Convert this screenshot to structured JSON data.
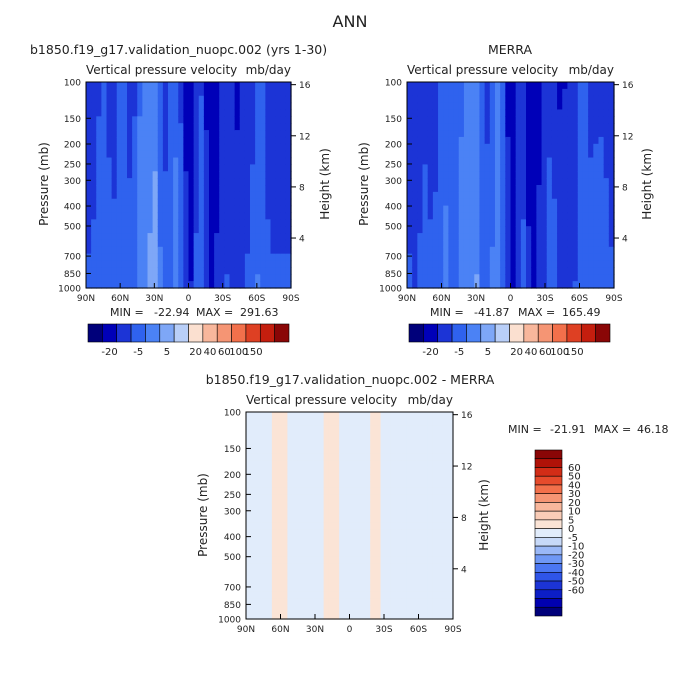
{
  "figure_title": "ANN",
  "colors": {
    "text": "#222222",
    "frame": "#000000",
    "abs_scale": [
      "#00007a",
      "#0000b8",
      "#1c34d6",
      "#2f62ee",
      "#4b82f5",
      "#7ea7f7",
      "#b9cff8",
      "#fbe0d0",
      "#f8b79c",
      "#f59574",
      "#f2704b",
      "#de4023",
      "#c41e0e",
      "#8a0606"
    ],
    "diff_scale": [
      "#00007a",
      "#0000b0",
      "#0c1ec6",
      "#1c34d6",
      "#2f55e8",
      "#4b77f2",
      "#6f98f5",
      "#9ab8f7",
      "#c7d9f8",
      "#e1ecfb",
      "#fbe4d6",
      "#f9ccb7",
      "#f8b79c",
      "#f59574",
      "#f2704b",
      "#e64b2c",
      "#d22d17",
      "#b01208",
      "#8a0606"
    ]
  },
  "chart_data": [
    {
      "type": "heatmap",
      "title": "b1850.f19_g17.validation_nuopc.002 (yrs 1-30)",
      "subtitle": "Vertical pressure velocity",
      "units": "mb/day",
      "ylabel": "Pressure (mb)",
      "y2label": "Height (km)",
      "x_ticks": [
        "90N",
        "60N",
        "30N",
        "0",
        "30S",
        "60S",
        "90S"
      ],
      "y_ticks": [
        100,
        150,
        200,
        250,
        300,
        400,
        500,
        700,
        850,
        1000
      ],
      "y2_ticks": [
        4,
        8,
        12,
        16
      ],
      "stats": {
        "min_label": "MIN =",
        "min": "-22.94",
        "max_label": "MAX =",
        "max": "291.63"
      },
      "colorbar_labels": [
        "-20",
        "-5",
        "5",
        "20",
        "40",
        "60",
        "100",
        "150"
      ]
    },
    {
      "type": "heatmap",
      "title": "MERRA",
      "subtitle": "Vertical pressure velocity",
      "units": "mb/day",
      "ylabel": "Pressure (mb)",
      "y2label": "Height (km)",
      "x_ticks": [
        "90N",
        "60N",
        "30N",
        "0",
        "30S",
        "60S",
        "90S"
      ],
      "y_ticks": [
        100,
        150,
        200,
        250,
        300,
        400,
        500,
        700,
        850,
        1000
      ],
      "y2_ticks": [
        4,
        8,
        12,
        16
      ],
      "stats": {
        "min_label": "MIN =",
        "min": "-41.87",
        "max_label": "MAX =",
        "max": "165.49"
      },
      "colorbar_labels": [
        "-20",
        "-5",
        "5",
        "20",
        "40",
        "60",
        "100",
        "150"
      ]
    },
    {
      "type": "heatmap",
      "title": "b1850.f19_g17.validation_nuopc.002 - MERRA",
      "subtitle": "Vertical pressure velocity",
      "units": "mb/day",
      "ylabel": "Pressure (mb)",
      "y2label": "Height (km)",
      "x_ticks": [
        "90N",
        "60N",
        "30N",
        "0",
        "30S",
        "60S",
        "90S"
      ],
      "y_ticks": [
        100,
        150,
        200,
        250,
        300,
        400,
        500,
        700,
        850,
        1000
      ],
      "y2_ticks": [
        4,
        8,
        12,
        16
      ],
      "stats": {
        "min_label": "MIN =",
        "min": "-21.91",
        "max_label": "MAX =",
        "max": "46.18"
      },
      "colorbar_labels": [
        "60",
        "50",
        "40",
        "30",
        "20",
        "10",
        "5",
        "0",
        "-5",
        "-10",
        "-20",
        "-30",
        "-40",
        "-50",
        "-60"
      ]
    }
  ]
}
